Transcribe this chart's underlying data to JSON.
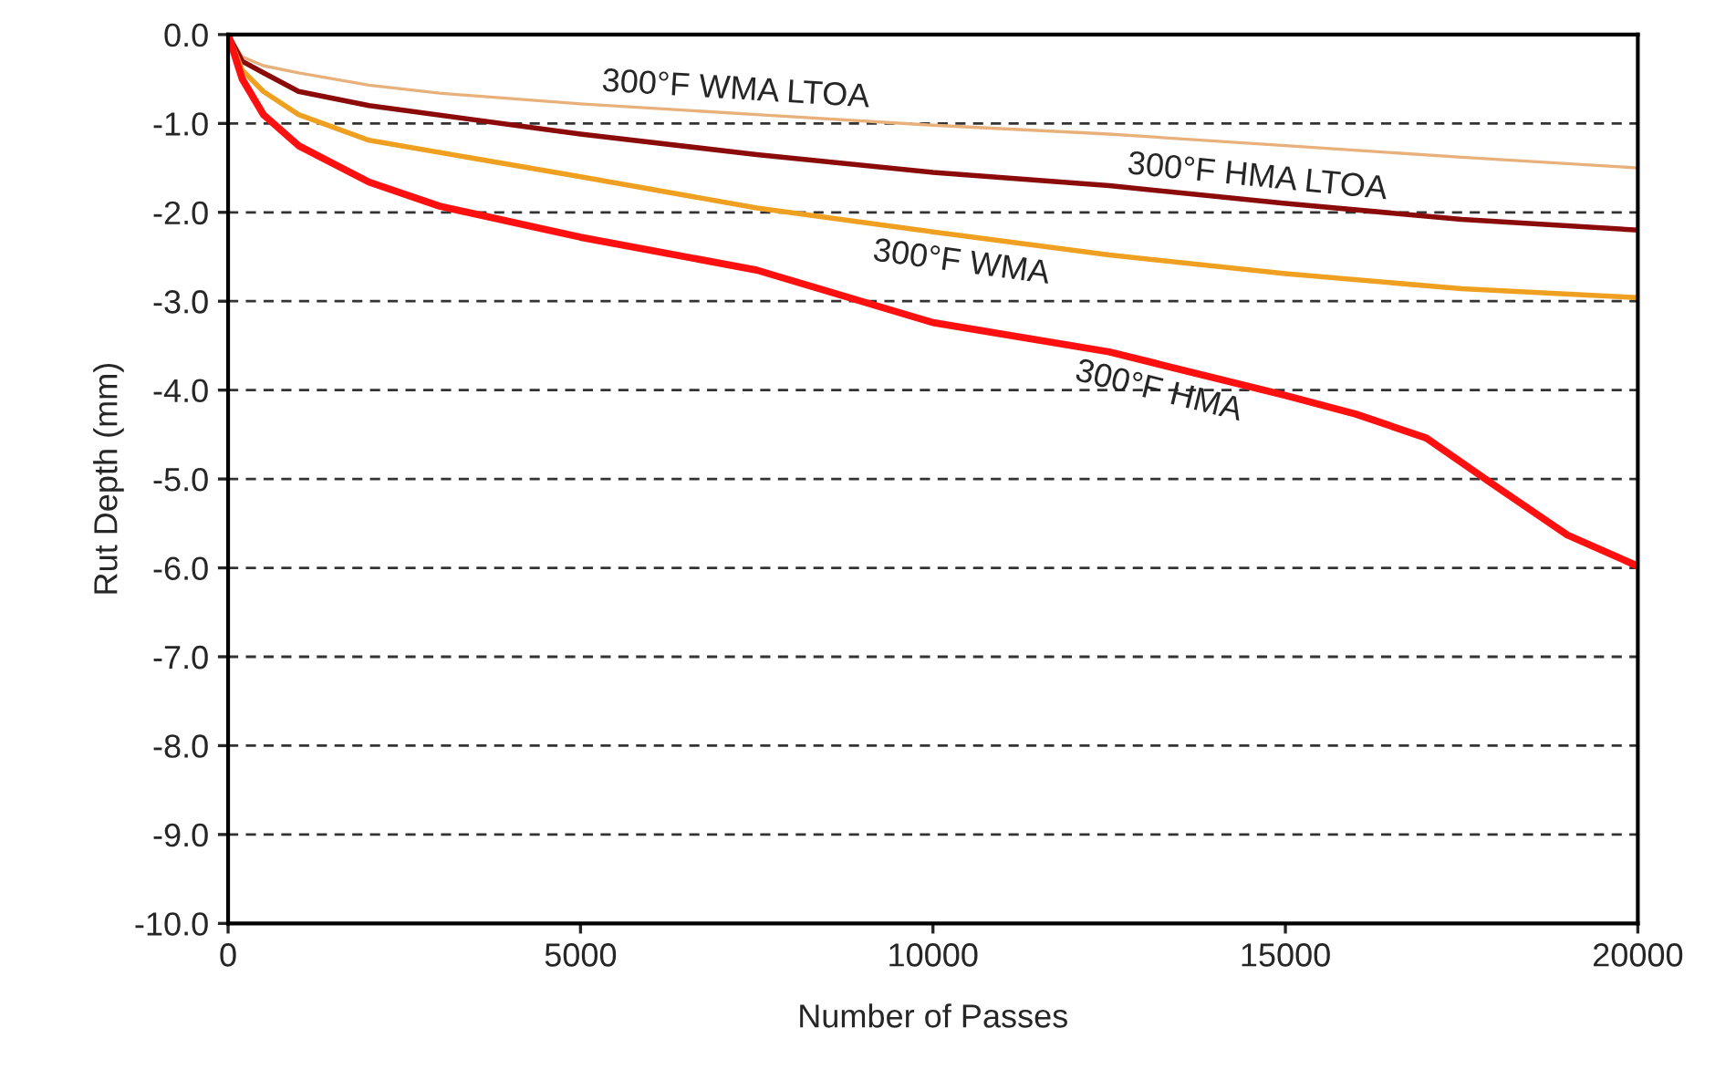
{
  "chart_data": {
    "type": "line",
    "xlabel": "Number of Passes",
    "ylabel": "Rut Depth (mm)",
    "xlim": [
      0,
      20000
    ],
    "xticks": [
      0,
      5000,
      10000,
      15000,
      20000
    ],
    "ylim": [
      -10,
      0
    ],
    "yticks": [
      {
        "value": 0,
        "label": "0.0"
      },
      {
        "value": -1,
        "label": "-1.0"
      },
      {
        "value": -2,
        "label": "-2.0"
      },
      {
        "value": -3,
        "label": "-3.0"
      },
      {
        "value": -4,
        "label": "-4.0"
      },
      {
        "value": -5,
        "label": "-5.0"
      },
      {
        "value": -6,
        "label": "-6.0"
      },
      {
        "value": -7,
        "label": "-7.0"
      },
      {
        "value": -8,
        "label": "-8.0"
      },
      {
        "value": -9,
        "label": "-9.0"
      },
      {
        "value": -10,
        "label": "-10.0"
      }
    ],
    "grid": "y",
    "legend": false,
    "line_style": "solid",
    "marker": "none",
    "series": [
      {
        "name": "300°F WMA LTOA",
        "color": "#e8b07a",
        "x": [
          0,
          200,
          500,
          1000,
          2000,
          3000,
          5000,
          7500,
          10000,
          12500,
          15000,
          17500,
          20000
        ],
        "values": [
          0,
          -0.25,
          -0.35,
          -0.43,
          -0.57,
          -0.66,
          -0.78,
          -0.9,
          -1.02,
          -1.12,
          -1.25,
          -1.38,
          -1.5
        ]
      },
      {
        "name": "300°F HMA LTOA",
        "color": "#8b0a0a",
        "x": [
          0,
          200,
          500,
          1000,
          2000,
          5000,
          7500,
          10000,
          12500,
          15000,
          17500,
          20000
        ],
        "values": [
          0,
          -0.3,
          -0.43,
          -0.64,
          -0.8,
          -1.12,
          -1.35,
          -1.55,
          -1.7,
          -1.9,
          -2.08,
          -2.2
        ]
      },
      {
        "name": "300°F WMA",
        "color": "#f0a020",
        "x": [
          0,
          200,
          500,
          1000,
          2000,
          5000,
          7500,
          10000,
          12500,
          15000,
          17500,
          20000
        ],
        "values": [
          0,
          -0.4,
          -0.64,
          -0.9,
          -1.19,
          -1.6,
          -1.95,
          -2.22,
          -2.48,
          -2.69,
          -2.86,
          -2.96
        ]
      },
      {
        "name": "300°F HMA",
        "color": "#ff1010",
        "x": [
          0,
          200,
          500,
          1000,
          2000,
          3000,
          5000,
          7500,
          10000,
          12500,
          15000,
          16000,
          17000,
          18000,
          19000,
          20000
        ],
        "values": [
          0,
          -0.5,
          -0.9,
          -1.25,
          -1.66,
          -1.93,
          -2.28,
          -2.65,
          -3.24,
          -3.57,
          -4.06,
          -4.27,
          -4.54,
          -5.09,
          -5.63,
          -5.98
        ]
      }
    ]
  }
}
